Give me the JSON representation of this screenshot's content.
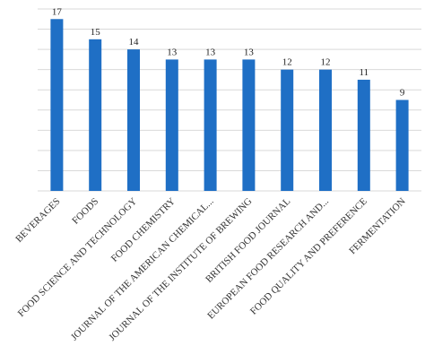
{
  "chart_data": {
    "type": "bar",
    "categories": [
      "BEVERAGES",
      "FOODS",
      "FOOD SCIENCE AND TECHNOLOGY",
      "FOOD CHEMISTRY",
      "JOURNAL OF THE AMERICAN CHEMICAL...",
      "JOURNAL OF THE INSTITUTE OF BREWING",
      "BRITISH FOOD JOURNAL",
      "EUROPEAN FOOD RESEARCH AND...",
      "FOOD QUALITY AND PREFERENCE",
      "FERMENTATION"
    ],
    "values": [
      17,
      15,
      14,
      13,
      13,
      13,
      12,
      12,
      11,
      9
    ],
    "color": "#1f6fc5",
    "ylim": [
      0,
      18
    ],
    "yticks": [
      0,
      2,
      4,
      6,
      8,
      10,
      12,
      14,
      16,
      18
    ],
    "grid": true
  }
}
